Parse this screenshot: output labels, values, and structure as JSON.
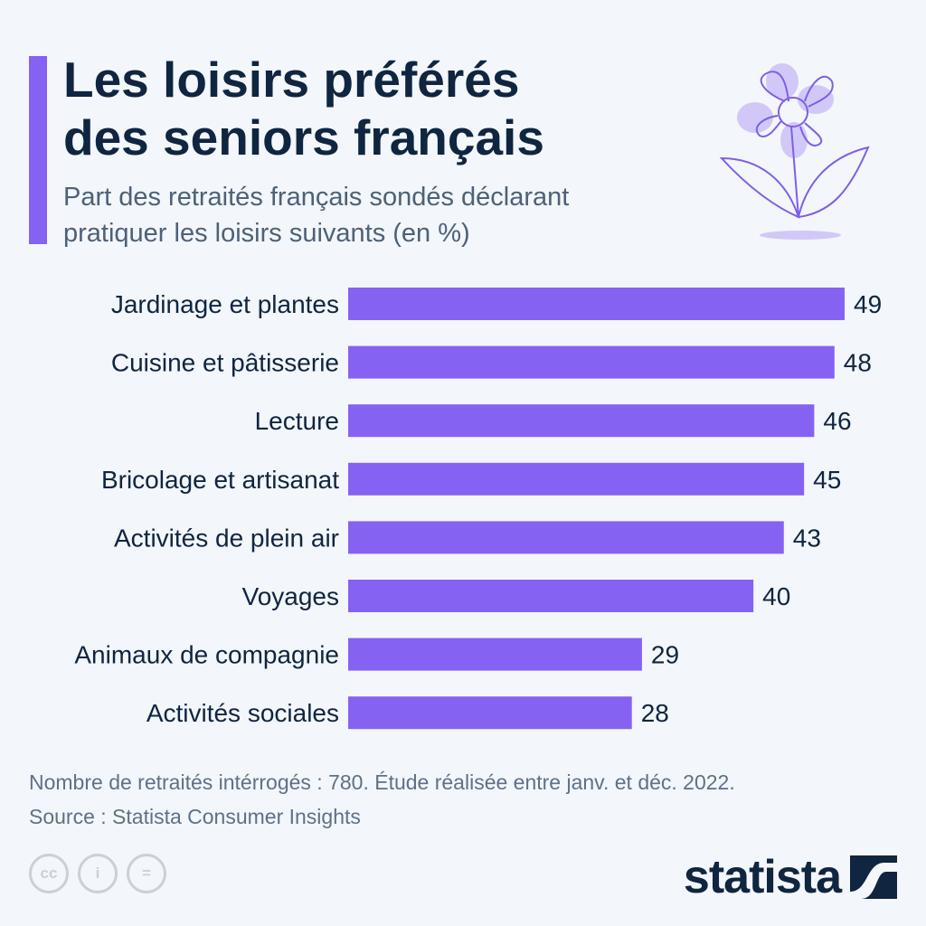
{
  "title_line1": "Les loisirs préférés",
  "title_line2": "des seniors français",
  "subtitle_line1": "Part des retraités français sondés déclarant",
  "subtitle_line2": "pratiquer les loisirs suivants (en %)",
  "note": "Nombre de retraités intérrogés : 780. Étude réalisée entre janv. et déc. 2022.",
  "source": "Source : Statista Consumer Insights",
  "logo": "statista",
  "license_icons": [
    "cc-icon",
    "attribution-icon",
    "no-derivatives-icon"
  ],
  "colors": {
    "bar": "#8662f2",
    "accent": "#8662f2",
    "title": "#0f2540"
  },
  "chart_data": {
    "type": "bar",
    "orientation": "horizontal",
    "categories": [
      "Jardinage et plantes",
      "Cuisine et pâtisserie",
      "Lecture",
      "Bricolage et artisanat",
      "Activités de plein air",
      "Voyages",
      "Animaux de compagnie",
      "Activités sociales"
    ],
    "values": [
      49,
      48,
      46,
      45,
      43,
      40,
      29,
      28
    ],
    "unit": "%",
    "xlim": [
      0,
      49
    ],
    "grid": false,
    "data_labels": true
  }
}
